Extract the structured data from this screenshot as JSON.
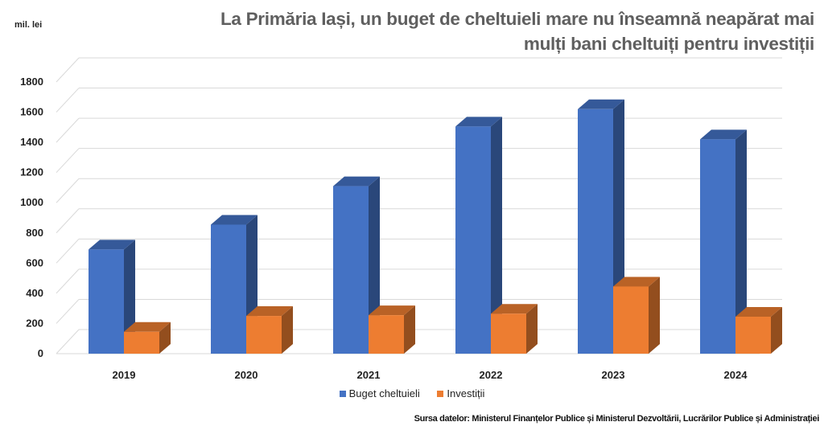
{
  "title": "La Primăria Iași, un buget de cheltuieli mare nu înseamnă neapărat mai mulți bani cheltuiți pentru investiții",
  "source": "Sursa datelor: Ministerul Finanțelor Publice și Ministerul Dezvoltării, Lucrărilor Publice și Administrației",
  "colors": {
    "buget": "#4472c4",
    "investitii": "#ed7d31"
  },
  "chart_data": {
    "type": "bar",
    "title": "La Primăria Iași, un buget de cheltuieli mare nu înseamnă neapărat mai mulți bani cheltuiți pentru investiții",
    "ylabel": "mil. lei",
    "xlabel": "",
    "categories": [
      "2019",
      "2020",
      "2021",
      "2022",
      "2023",
      "2024"
    ],
    "series": [
      {
        "name": "Buget cheltuieli",
        "values": [
          690,
          855,
          1110,
          1505,
          1620,
          1420
        ]
      },
      {
        "name": "Investiții",
        "values": [
          145,
          250,
          255,
          265,
          445,
          245
        ]
      }
    ],
    "ylim": [
      0,
      1800
    ],
    "yticks": [
      0,
      200,
      400,
      600,
      800,
      1000,
      1200,
      1400,
      1600,
      1800
    ],
    "grid": true,
    "style": "3d",
    "legend": "bottom"
  }
}
